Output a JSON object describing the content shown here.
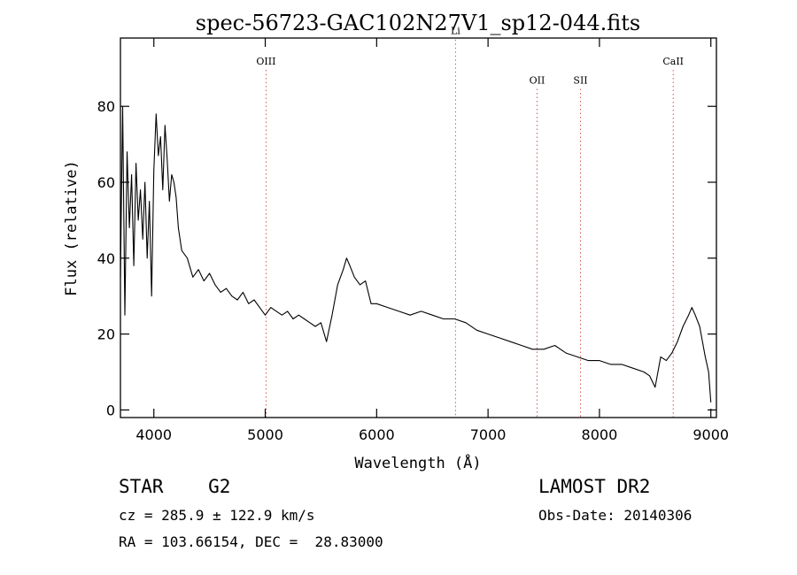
{
  "chart_data": {
    "type": "line",
    "title": "spec-56723-GAC102N27V1_sp12-044.fits",
    "xlabel": "Wavelength (Å)",
    "ylabel": "Flux (relative)",
    "xlim": [
      3700,
      9050
    ],
    "ylim": [
      -2,
      98
    ],
    "x_ticks": [
      4000,
      5000,
      6000,
      7000,
      8000,
      9000
    ],
    "y_ticks": [
      0,
      20,
      40,
      60,
      80
    ],
    "grid": false,
    "line_color": "#000000",
    "marker_color": "#d9534f",
    "series": [
      {
        "x": [
          3700,
          3720,
          3740,
          3760,
          3780,
          3800,
          3820,
          3840,
          3860,
          3880,
          3900,
          3920,
          3940,
          3960,
          3980,
          4000,
          4020,
          4040,
          4060,
          4080,
          4100,
          4120,
          4140,
          4160,
          4180,
          4200,
          4220,
          4250,
          4300,
          4350,
          4400,
          4450,
          4500,
          4550,
          4600,
          4650,
          4700,
          4750,
          4800,
          4850,
          4900,
          4950,
          5000,
          5050,
          5100,
          5150,
          5200,
          5250,
          5300,
          5350,
          5400,
          5450,
          5500,
          5550,
          5600,
          5650,
          5700,
          5730,
          5760,
          5800,
          5850,
          5900,
          5950,
          6000,
          6100,
          6200,
          6300,
          6400,
          6500,
          6600,
          6700,
          6800,
          6900,
          7000,
          7100,
          7200,
          7300,
          7400,
          7500,
          7600,
          7650,
          7700,
          7800,
          7900,
          8000,
          8100,
          8200,
          8300,
          8400,
          8450,
          8500,
          8550,
          8600,
          8650,
          8700,
          8750,
          8800,
          8830,
          8860,
          8900,
          8950,
          8980,
          9000
        ],
        "y": [
          35,
          80,
          25,
          68,
          48,
          62,
          38,
          65,
          50,
          58,
          45,
          60,
          40,
          55,
          30,
          63,
          78,
          67,
          72,
          58,
          75,
          66,
          55,
          62,
          60,
          56,
          48,
          42,
          40,
          35,
          37,
          34,
          36,
          33,
          31,
          32,
          30,
          29,
          31,
          28,
          29,
          27,
          25,
          27,
          26,
          25,
          26,
          24,
          25,
          24,
          23,
          22,
          23,
          18,
          25,
          33,
          37,
          40,
          38,
          35,
          33,
          34,
          28,
          28,
          27,
          26,
          25,
          26,
          25,
          24,
          24,
          23,
          21,
          20,
          19,
          18,
          17,
          16,
          16,
          17,
          16,
          15,
          14,
          13,
          13,
          12,
          12,
          11,
          10,
          9,
          6,
          14,
          13,
          15,
          18,
          22,
          25,
          27,
          25,
          22,
          14,
          10,
          2
        ]
      }
    ],
    "annotations": [
      {
        "label": "OIII",
        "x": 5007,
        "y": 91
      },
      {
        "label": "Li",
        "x": 6708,
        "y": 99
      },
      {
        "label": "OII",
        "x": 7440,
        "y": 86
      },
      {
        "label": "SII",
        "x": 7830,
        "y": 86
      },
      {
        "label": "CaII",
        "x": 8662,
        "y": 91
      }
    ]
  },
  "footer": {
    "object_class": "STAR    G2",
    "cz": "cz = 285.9 ± 122.9 km/s",
    "radec": "RA = 103.66154, DEC =  28.83000",
    "survey": "LAMOST DR2",
    "obs_date": "Obs-Date: 20140306"
  }
}
